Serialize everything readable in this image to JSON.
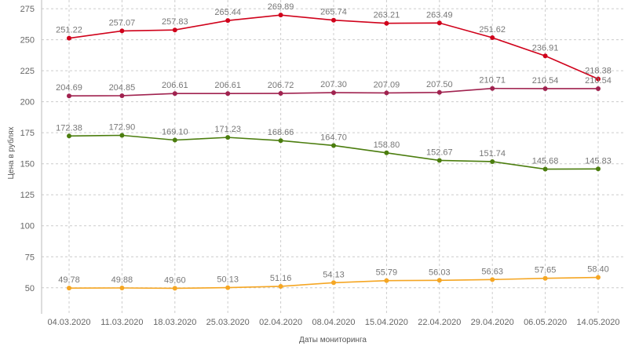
{
  "chart_data": {
    "type": "line",
    "title": "",
    "xlabel": "Даты мониторинга",
    "ylabel": "Цена в рублях",
    "ylim": [
      29,
      282
    ],
    "yticks": [
      50,
      75,
      100,
      125,
      150,
      175,
      200,
      225,
      250,
      275
    ],
    "grid": true,
    "categories": [
      "04.03.2020",
      "11.03.2020",
      "18.03.2020",
      "25.03.2020",
      "02.04.2020",
      "08.04.2020",
      "15.04.2020",
      "22.04.2020",
      "29.04.2020",
      "06.05.2020",
      "14.05.2020"
    ],
    "series": [
      {
        "name": "series-red",
        "color": "#d0021b",
        "values": [
          251.22,
          257.07,
          257.83,
          265.44,
          269.89,
          265.74,
          263.21,
          263.49,
          251.62,
          236.91,
          218.38
        ],
        "labels": [
          "251.22",
          "257.07",
          "257.83",
          "265.44",
          "269.89",
          "265.74",
          "263.21",
          "263.49",
          "251.62",
          "236.91",
          "218.38"
        ]
      },
      {
        "name": "series-purple",
        "color": "#a0224f",
        "values": [
          204.69,
          204.85,
          206.61,
          206.61,
          206.72,
          207.3,
          207.09,
          207.5,
          210.71,
          210.54,
          210.54
        ],
        "labels": [
          "204.69",
          "204.85",
          "206.61",
          "206.61",
          "206.72",
          "207.30",
          "207.09",
          "207.50",
          "210.71",
          "210.54",
          "210.54"
        ]
      },
      {
        "name": "series-green",
        "color": "#4b7d0e",
        "values": [
          172.38,
          172.9,
          169.1,
          171.23,
          168.66,
          164.7,
          158.8,
          152.67,
          151.74,
          145.68,
          145.83
        ],
        "labels": [
          "172.38",
          "172.90",
          "169.10",
          "171.23",
          "168.66",
          "164.70",
          "158.80",
          "152.67",
          "151.74",
          "145.68",
          "145.83"
        ]
      },
      {
        "name": "series-orange",
        "color": "#f5a623",
        "values": [
          49.78,
          49.88,
          49.6,
          50.13,
          51.16,
          54.13,
          55.79,
          56.03,
          56.63,
          57.65,
          58.4
        ],
        "labels": [
          "49.78",
          "49.88",
          "49.60",
          "50.13",
          "51.16",
          "54.13",
          "55.79",
          "56.03",
          "56.63",
          "57.65",
          "58.40"
        ]
      }
    ]
  }
}
